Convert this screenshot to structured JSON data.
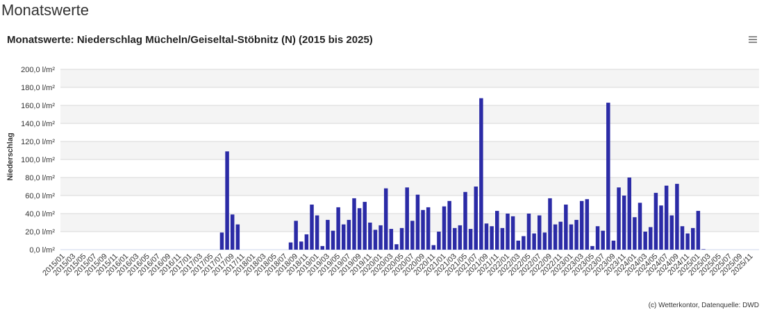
{
  "page_title": "Monatswerte",
  "chart_data": {
    "type": "bar",
    "title": "Monatswerte: Niederschlag Mücheln/Geiseltal-Stöbnitz (N) (2015 bis 2025)",
    "y_label": "Niederschlag",
    "credit": "(c) Wetterkontor, Datenquelle: DWD",
    "color": "#2b2ba6",
    "grid": true,
    "ylim": [
      0,
      200
    ],
    "yticks": [
      {
        "value": 0,
        "label": "0,0 l/m²"
      },
      {
        "value": 20,
        "label": "20,0 l/m²"
      },
      {
        "value": 40,
        "label": "40,0 l/m²"
      },
      {
        "value": 60,
        "label": "60,0 l/m²"
      },
      {
        "value": 80,
        "label": "80,0 l/m²"
      },
      {
        "value": 100,
        "label": "100,0 l/m²"
      },
      {
        "value": 120,
        "label": "120,0 l/m²"
      },
      {
        "value": 140,
        "label": "140,0 l/m²"
      },
      {
        "value": 160,
        "label": "160,0 l/m²"
      },
      {
        "value": 180,
        "label": "180,0 l/m²"
      },
      {
        "value": 200,
        "label": "200,0 l/m²"
      }
    ],
    "categories": [
      "2015/01",
      null,
      "2015/03",
      null,
      "2015/05",
      null,
      "2015/07",
      null,
      "2015/09",
      null,
      "2015/11",
      null,
      "2016/01",
      null,
      "2016/03",
      null,
      "2016/05",
      null,
      "2016/07",
      null,
      "2016/09",
      null,
      "2016/11",
      null,
      "2017/01",
      null,
      "2017/03",
      null,
      "2017/05",
      null,
      "2017/07",
      null,
      "2017/09",
      null,
      "2017/11",
      null,
      "2018/01",
      null,
      "2018/03",
      null,
      "2018/05",
      null,
      "2018/07",
      null,
      "2018/09",
      null,
      "2018/11",
      null,
      "2019/01",
      null,
      "2019/03",
      null,
      "2019/05",
      null,
      "2019/07",
      null,
      "2019/09",
      null,
      "2019/11",
      null,
      "2020/01",
      null,
      "2020/03",
      null,
      "2020/05",
      null,
      "2020/07",
      null,
      "2020/09",
      null,
      "2020/11",
      null,
      "2021/01",
      null,
      "2021/03",
      null,
      "2021/05",
      null,
      "2021/07",
      null,
      "2021/09",
      null,
      "2021/11",
      null,
      "2022/01",
      null,
      "2022/03",
      null,
      "2022/05",
      null,
      "2022/07",
      null,
      "2022/09",
      null,
      "2022/11",
      null,
      "2023/01",
      null,
      "2023/03",
      null,
      "2023/05",
      null,
      "2023/07",
      null,
      "2023/09",
      null,
      "2023/11",
      null,
      "2024/01",
      null,
      "2024/03",
      null,
      "2024/05",
      null,
      "2024/07",
      null,
      "2024/09",
      null,
      "2024/11",
      null,
      "2025/01",
      null,
      "2025/03",
      null,
      "2025/05",
      null,
      "2025/07",
      null,
      "2025/09",
      null,
      "2025/11",
      null
    ],
    "values": [
      null,
      null,
      null,
      null,
      null,
      null,
      null,
      null,
      null,
      null,
      null,
      null,
      null,
      null,
      null,
      null,
      null,
      null,
      null,
      null,
      null,
      null,
      null,
      null,
      null,
      null,
      null,
      null,
      null,
      null,
      19,
      109,
      39,
      28,
      null,
      null,
      null,
      null,
      null,
      null,
      null,
      null,
      null,
      8,
      32,
      9,
      17,
      50,
      38,
      4,
      33,
      21,
      47,
      28,
      33,
      57,
      46,
      53,
      30,
      22,
      27,
      68,
      23,
      6,
      24,
      69,
      32,
      61,
      44,
      47,
      5,
      20,
      48,
      54,
      24,
      27,
      64,
      23,
      70,
      168,
      29,
      26,
      43,
      24,
      40,
      37,
      10,
      15,
      40,
      18,
      38,
      19,
      57,
      28,
      31,
      50,
      28,
      33,
      54,
      56,
      4,
      26,
      21,
      163,
      10,
      69,
      60,
      80,
      36,
      52,
      20,
      25,
      63,
      49,
      71,
      38,
      73,
      26,
      18,
      24,
      43,
      0.5,
      null,
      null,
      null,
      null,
      null,
      null,
      null,
      null,
      null,
      null
    ]
  }
}
